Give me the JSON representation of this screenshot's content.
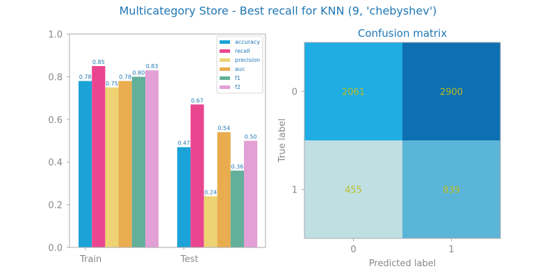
{
  "suptitle": "Multicategory Store - Best recall for KNN (9, 'chebyshev')",
  "chart_data": [
    {
      "type": "bar",
      "categories": [
        "Train",
        "Test"
      ],
      "series": [
        {
          "name": "accuracy",
          "values": [
            0.78,
            0.47
          ],
          "labels": [
            "0.78",
            "0.47"
          ],
          "color": "#1ba3d8"
        },
        {
          "name": "recall",
          "values": [
            0.85,
            0.67
          ],
          "labels": [
            "0.85",
            "0.67"
          ],
          "color": "#ea4690"
        },
        {
          "name": "precision",
          "values": [
            0.75,
            0.24
          ],
          "labels": [
            "0.75",
            "0.24"
          ],
          "color": "#edd374"
        },
        {
          "name": "auc",
          "values": [
            0.78,
            0.54
          ],
          "labels": [
            "0.78",
            "0.54"
          ],
          "color": "#e9ac4e"
        },
        {
          "name": "f1",
          "values": [
            0.8,
            0.36
          ],
          "labels": [
            "0.80",
            "0.36"
          ],
          "color": "#63b09a"
        },
        {
          "name": "f2",
          "values": [
            0.83,
            0.5
          ],
          "labels": [
            "0.83",
            "0.50"
          ],
          "color": "#e2a0d6"
        }
      ],
      "ylim": [
        0,
        1.0
      ],
      "yticks": [
        "0.0",
        "0.2",
        "0.4",
        "0.6",
        "0.8",
        "1.0"
      ],
      "legend": "top-right",
      "grid": false
    },
    {
      "type": "heatmap",
      "title": "Confusion matrix",
      "xlabel": "Predicted label",
      "ylabel": "True label",
      "xticks": [
        "0",
        "1"
      ],
      "yticks": [
        "0",
        "1"
      ],
      "matrix": [
        [
          2061,
          2900
        ],
        [
          455,
          839
        ]
      ],
      "colors": [
        [
          "#1fade4",
          "#0e6fb2"
        ],
        [
          "#bfdfe3",
          "#5ab5d8"
        ]
      ]
    }
  ]
}
